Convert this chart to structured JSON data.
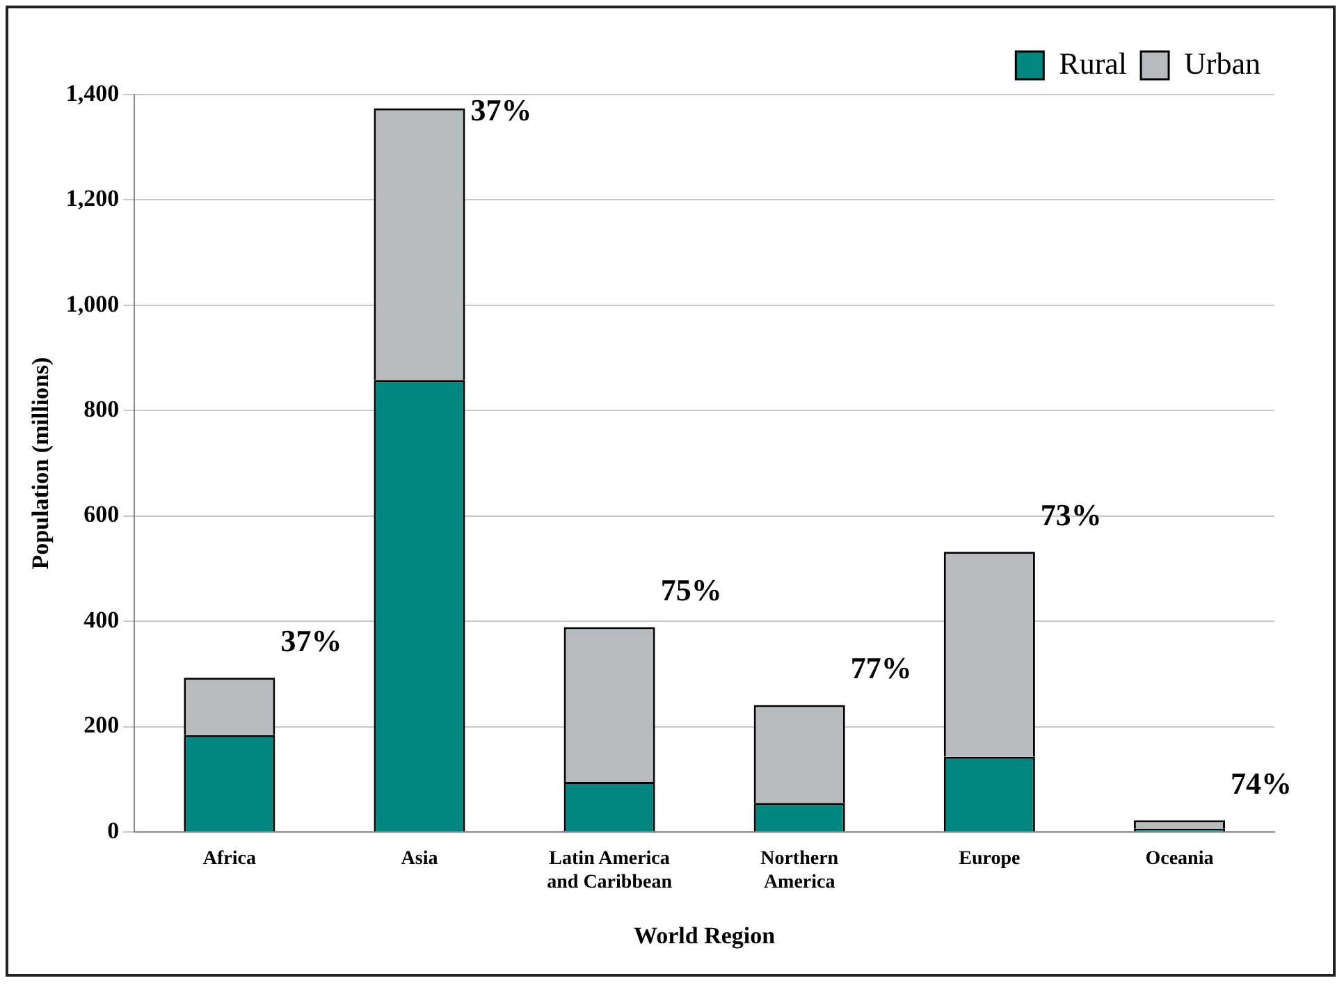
{
  "chart_data": {
    "type": "bar",
    "stacked": true,
    "xlabel": "World Region",
    "ylabel": "Population (millions)",
    "categories": [
      "Africa",
      "Asia",
      "Latin America and Caribbean",
      "Northern America",
      "Europe",
      "Oceania"
    ],
    "series": [
      {
        "name": "Rural",
        "color": "#00857f",
        "values": [
          184,
          858,
          95,
          55,
          143,
          6
        ]
      },
      {
        "name": "Urban",
        "color": "#b7bbbe",
        "values": [
          109,
          516,
          294,
          186,
          389,
          16
        ]
      }
    ],
    "ylim": [
      0,
      1400
    ],
    "yticks": [
      0,
      200,
      400,
      600,
      800,
      {
        "value": 1000,
        "label": "1,000"
      },
      {
        "value": 1200,
        "label": "1,200"
      },
      {
        "value": 1400,
        "label": "1,400"
      }
    ],
    "grid": "y",
    "legend": "top right",
    "annotations": [
      {
        "text": "37%",
        "x": "Africa",
        "y": 293
      },
      {
        "text": "37%",
        "x": "Asia",
        "y": 1374
      },
      {
        "text": "75%",
        "x": "Latin America and Caribbean",
        "y": 389
      },
      {
        "text": "77%",
        "x": "Northern America",
        "y": 241
      },
      {
        "text": "73%",
        "x": "Europe",
        "y": 532
      },
      {
        "text": "74%",
        "x": "Oceania",
        "y": 22
      }
    ]
  }
}
